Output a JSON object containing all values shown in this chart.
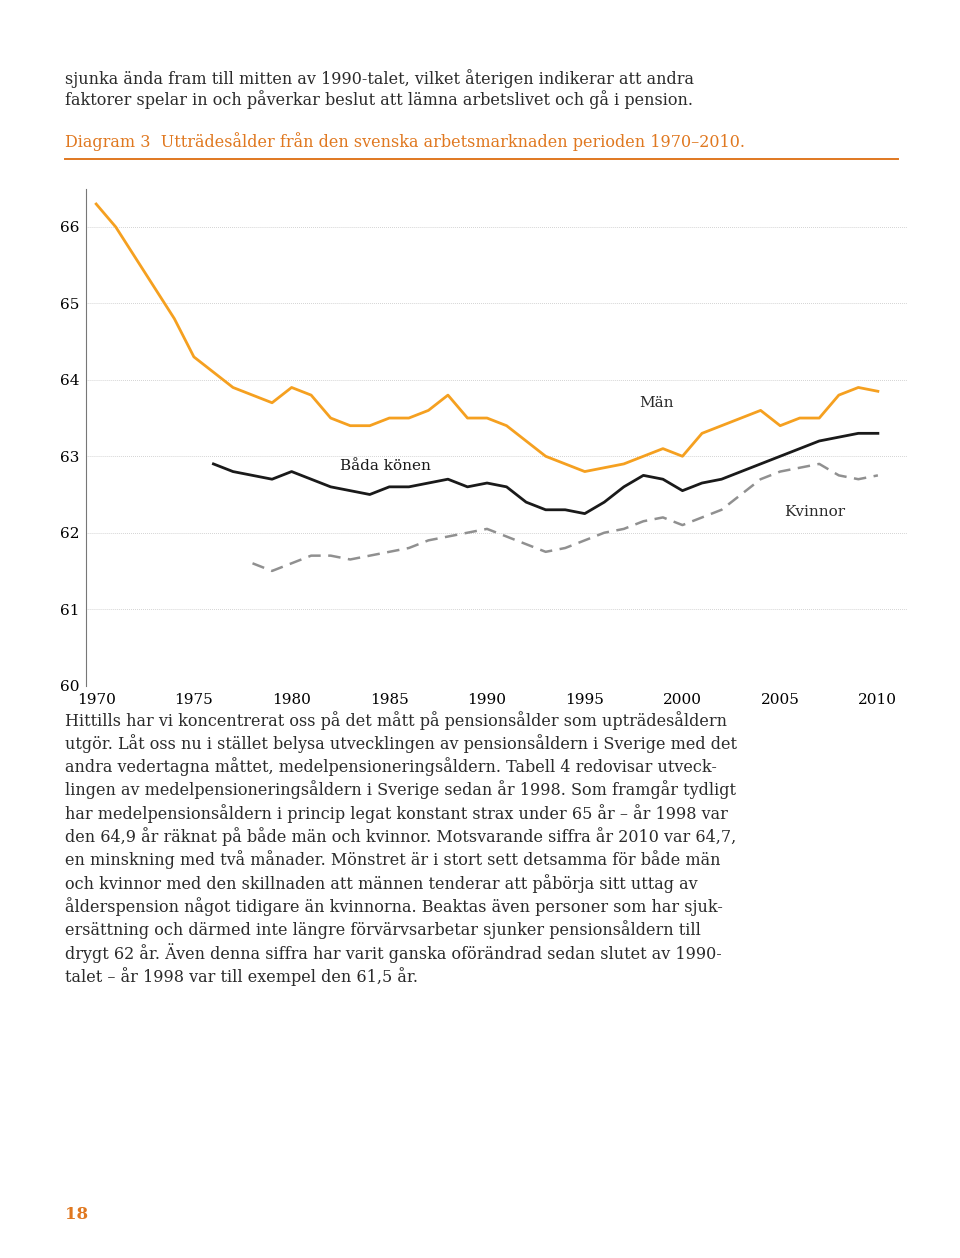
{
  "title": "Diagram 3  Utträdesålder från den svenska arbetsmarknaden perioden 1970–2010.",
  "title_color": "#E07820",
  "bg_color": "#FFFFFF",
  "header_color": "#F5A96A",
  "page_bg": "#FFFFFF",
  "text_color": "#2B2B2B",
  "ylim": [
    60,
    66.5
  ],
  "yticks": [
    60,
    61,
    62,
    63,
    64,
    65,
    66
  ],
  "xticks": [
    1970,
    1975,
    1980,
    1985,
    1990,
    1995,
    2000,
    2005,
    2010
  ],
  "men_color": "#F5A020",
  "both_color": "#1A1A1A",
  "women_color": "#909090",
  "men_label": "Män",
  "both_label": "Båda könen",
  "women_label": "Kvinnor",
  "years_men": [
    1970,
    1971,
    1972,
    1973,
    1974,
    1975,
    1976,
    1977,
    1978,
    1979,
    1980,
    1981,
    1982,
    1983,
    1984,
    1985,
    1986,
    1987,
    1988,
    1989,
    1990,
    1991,
    1992,
    1993,
    1994,
    1995,
    1996,
    1997,
    1998,
    1999,
    2000,
    2001,
    2002,
    2003,
    2004,
    2005,
    2006,
    2007,
    2008,
    2009,
    2010
  ],
  "values_men": [
    66.3,
    66.0,
    65.6,
    65.2,
    64.8,
    64.3,
    64.1,
    63.9,
    63.8,
    63.7,
    63.9,
    63.8,
    63.5,
    63.4,
    63.4,
    63.5,
    63.5,
    63.6,
    63.8,
    63.5,
    63.5,
    63.4,
    63.2,
    63.0,
    62.9,
    62.8,
    62.85,
    62.9,
    63.0,
    63.1,
    63.0,
    63.3,
    63.4,
    63.5,
    63.6,
    63.4,
    63.5,
    63.5,
    63.8,
    63.9,
    63.85
  ],
  "years_both": [
    1976,
    1977,
    1978,
    1979,
    1980,
    1981,
    1982,
    1983,
    1984,
    1985,
    1986,
    1987,
    1988,
    1989,
    1990,
    1991,
    1992,
    1993,
    1994,
    1995,
    1996,
    1997,
    1998,
    1999,
    2000,
    2001,
    2002,
    2003,
    2004,
    2005,
    2006,
    2007,
    2008,
    2009,
    2010
  ],
  "values_both": [
    62.9,
    62.8,
    62.75,
    62.7,
    62.8,
    62.7,
    62.6,
    62.55,
    62.5,
    62.6,
    62.6,
    62.65,
    62.7,
    62.6,
    62.65,
    62.6,
    62.4,
    62.3,
    62.3,
    62.25,
    62.4,
    62.6,
    62.75,
    62.7,
    62.55,
    62.65,
    62.7,
    62.8,
    62.9,
    63.0,
    63.1,
    63.2,
    63.25,
    63.3,
    63.3
  ],
  "years_women": [
    1978,
    1979,
    1980,
    1981,
    1982,
    1983,
    1984,
    1985,
    1986,
    1987,
    1988,
    1989,
    1990,
    1991,
    1992,
    1993,
    1994,
    1995,
    1996,
    1997,
    1998,
    1999,
    2000,
    2001,
    2002,
    2003,
    2004,
    2005,
    2006,
    2007,
    2008,
    2009,
    2010
  ],
  "values_women": [
    61.6,
    61.5,
    61.6,
    61.7,
    61.7,
    61.65,
    61.7,
    61.75,
    61.8,
    61.9,
    61.95,
    62.0,
    62.05,
    61.95,
    61.85,
    61.75,
    61.8,
    61.9,
    62.0,
    62.05,
    62.15,
    62.2,
    62.1,
    62.2,
    62.3,
    62.5,
    62.7,
    62.8,
    62.85,
    62.9,
    62.75,
    62.7,
    62.75
  ],
  "top_line1": "sjunka ända fram till mitten av 1990-talet, vilket återigen indikerar att andra",
  "top_line2": "faktorer spelar in och påverkar beslut att lämna arbetslivet och gå i pension.",
  "bottom_text_lines": [
    "Hittills har vi koncentrerat oss på det mått på pensionsålder som upträdesåldern",
    "utgör. Låt oss nu i stället belysa utvecklingen av pensionsåldern i Sverige med det",
    "andra vedertagna måttet, medelpensioneringsåldern. Tabell 4 redovisar utveck-",
    "lingen av medelpensioneringsåldern i Sverige sedan år 1998. Som framgår tydligt",
    "har medelpensionsåldern i princip legat konstant strax under 65 år – år 1998 var",
    "den 64,9 år räknat på både män och kvinnor. Motsvarande siffra år 2010 var 64,7,",
    "en minskning med två månader. Mönstret är i stort sett detsamma för både män",
    "och kvinnor med den skillnaden att männen tenderar att påbörja sitt uttag av",
    "ålderspension något tidigare än kvinnorna. Beaktas även personer som har sjuk-",
    "ersättning och därmed inte längre förvärvsarbetar sjunker pensionsåldern till",
    "drygt 62 år. Även denna siffra har varit ganska oförändrad sedan slutet av 1990-",
    "talet – år 1998 var till exempel den 61,5 år."
  ],
  "page_number": "18"
}
